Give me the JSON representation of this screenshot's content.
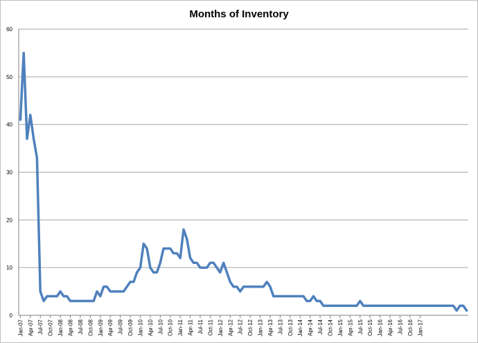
{
  "chart_data": {
    "type": "line",
    "title": "Months of Inventory",
    "xlabel": "",
    "ylabel": "",
    "ylim": [
      0,
      60
    ],
    "yticks": [
      0,
      10,
      20,
      30,
      40,
      50,
      60
    ],
    "grid": true,
    "legend": "none",
    "x_tick_labels": [
      "Jan-07",
      "Apr-07",
      "Jul-07",
      "Oct-07",
      "Jan-08",
      "Apr-08",
      "Jul-08",
      "Oct-08",
      "Jan-09",
      "Apr-09",
      "Jul-09",
      "Oct-09",
      "Jan-10",
      "Apr-10",
      "Jul-10",
      "Oct-10",
      "Jan-11",
      "Apr-11",
      "Jul-11",
      "Oct-11",
      "Jan-12",
      "Apr-12",
      "Jul-12",
      "Oct-12",
      "Jan-13",
      "Apr-13",
      "Jul-13",
      "Oct-13",
      "Jan-14",
      "Apr-14",
      "Jul-14",
      "Oct-14",
      "Jan-15",
      "Apr-15",
      "Jul-15",
      "Oct-15",
      "Jan-16",
      "Apr-16",
      "Jul-16",
      "Oct-16",
      "Jan-17"
    ],
    "series": [
      {
        "color": "#4f81bd",
        "values": [
          41,
          55,
          37,
          42,
          37,
          33,
          5,
          3,
          4,
          4,
          4,
          4,
          5,
          4,
          4,
          3,
          3,
          3,
          3,
          3,
          3,
          3,
          3,
          5,
          4,
          6,
          6,
          5,
          5,
          5,
          5,
          5,
          6,
          7,
          7,
          9,
          10,
          15,
          14,
          10,
          9,
          9,
          11,
          14,
          14,
          14,
          13,
          13,
          12,
          18,
          16,
          12,
          11,
          11,
          10,
          10,
          10,
          11,
          11,
          10,
          9,
          11,
          9,
          7,
          6,
          6,
          5,
          6,
          6,
          6,
          6,
          6,
          6,
          6,
          7,
          6,
          4,
          4,
          4,
          4,
          4,
          4,
          4,
          4,
          4,
          4,
          3,
          3,
          4,
          3,
          3,
          2,
          2,
          2,
          2,
          2,
          2,
          2,
          2,
          2,
          2,
          2,
          3,
          2,
          2,
          2,
          2,
          2,
          2,
          2,
          2,
          2,
          2,
          2,
          2,
          2,
          2,
          2,
          2,
          2,
          2,
          2,
          2,
          2,
          2,
          2,
          2,
          2,
          2,
          2,
          2,
          1,
          2,
          2,
          1
        ]
      }
    ]
  }
}
